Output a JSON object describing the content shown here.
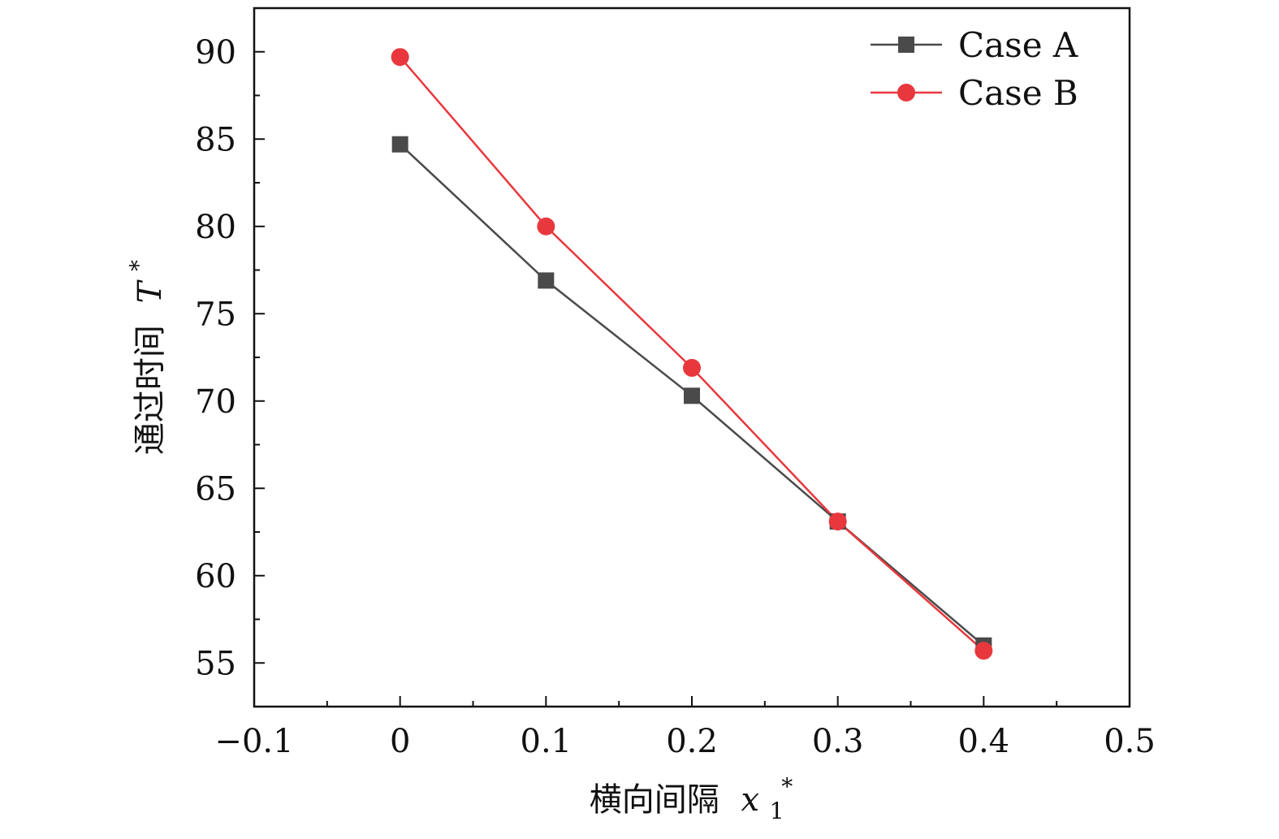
{
  "chart_data": {
    "type": "line",
    "title": "",
    "xlabel": "横向间隔",
    "xlabel_math_base": "x",
    "xlabel_math_sub": "1",
    "xlabel_math_sup": "*",
    "ylabel": "通过时间",
    "ylabel_math_base": "T",
    "ylabel_math_sup": "*",
    "xlim": [
      -0.1,
      0.5
    ],
    "ylim": [
      52.5,
      92.5
    ],
    "xticks": [
      -0.1,
      0,
      0.1,
      0.2,
      0.3,
      0.4,
      0.5
    ],
    "xtick_labels": [
      "−0.1",
      "0",
      "0.1",
      "0.2",
      "0.3",
      "0.4",
      "0.5"
    ],
    "yticks": [
      55,
      60,
      65,
      70,
      75,
      80,
      85,
      90
    ],
    "ytick_labels": [
      "55",
      "60",
      "65",
      "70",
      "75",
      "80",
      "85",
      "90"
    ],
    "grid": false,
    "legend_position": "top-right",
    "x": [
      0,
      0.1,
      0.2,
      0.3,
      0.4
    ],
    "series": [
      {
        "name": "Case A",
        "values": [
          84.7,
          76.9,
          70.3,
          63.1,
          56.0
        ],
        "color": "#4a4a4a",
        "marker": "square"
      },
      {
        "name": "Case B",
        "values": [
          89.7,
          80.0,
          71.9,
          63.1,
          55.7
        ],
        "color": "#e8383d",
        "marker": "circle"
      }
    ]
  }
}
